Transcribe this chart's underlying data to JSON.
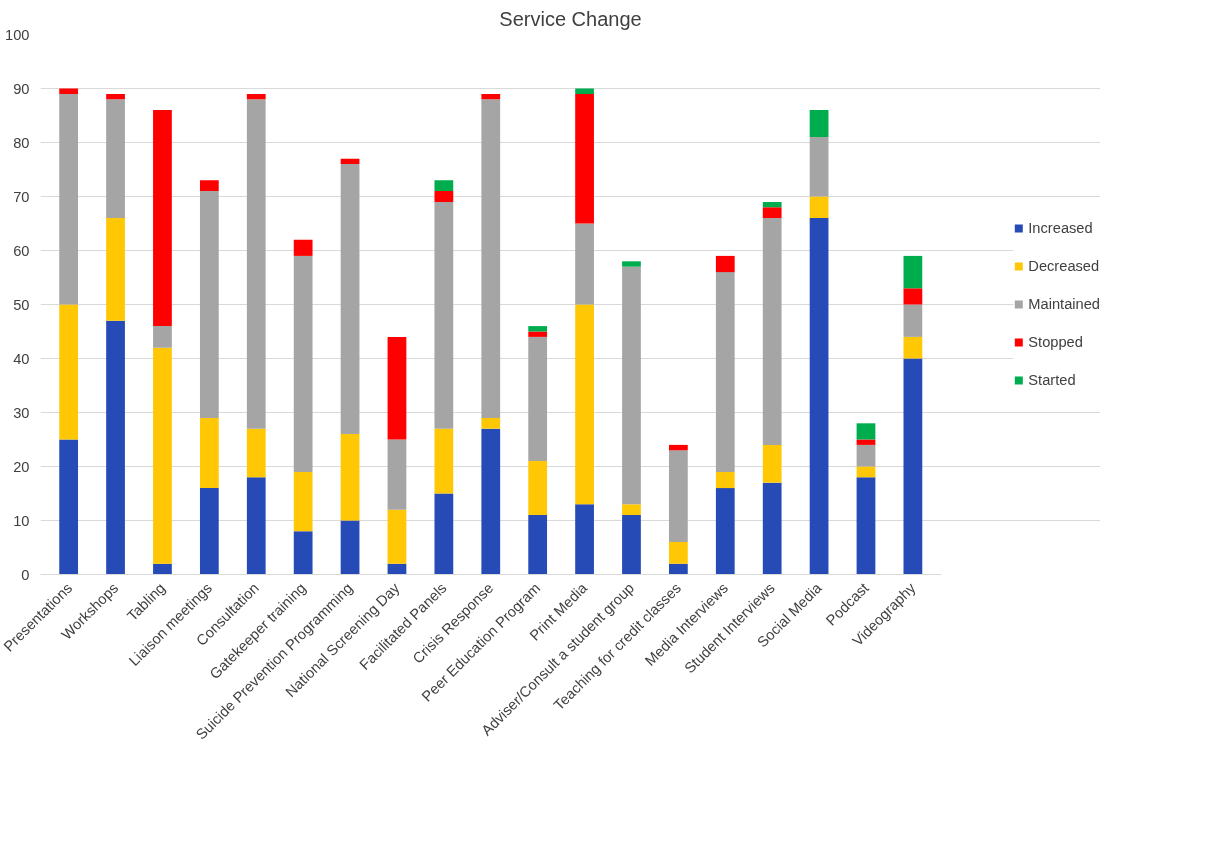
{
  "chart_data": {
    "type": "bar",
    "title": "Service Change",
    "stacked": true,
    "categories": [
      "Presentations",
      "Workshops",
      "Tabling",
      "Liaison meetings",
      "Consultation",
      "Gatekeeper training",
      "Suicide Prevention Programming",
      "National Screening Day",
      "Facilitated Panels",
      "Crisis Response",
      "Peer Education Program",
      "Print Media",
      "Adviser/Consult a student group",
      "Teaching for credit classes",
      "Media Interviews",
      "Student Interviews",
      "Social Media",
      "Podcast",
      "Videography"
    ],
    "series": [
      {
        "name": "Increased",
        "color": "#264bb7",
        "values": [
          25,
          47,
          2,
          16,
          18,
          8,
          10,
          2,
          15,
          27,
          11,
          13,
          11,
          2,
          16,
          17,
          66,
          18,
          40
        ]
      },
      {
        "name": "Decreased",
        "color": "#ffc704",
        "values": [
          25,
          19,
          40,
          13,
          9,
          11,
          16,
          10,
          12,
          2,
          10,
          37,
          2,
          4,
          3,
          7,
          4,
          2,
          4
        ]
      },
      {
        "name": "Maintained",
        "color": "#a5a5a5",
        "values": [
          39,
          22,
          4,
          42,
          61,
          40,
          50,
          13,
          42,
          59,
          23,
          15,
          44,
          17,
          37,
          42,
          11,
          4,
          6
        ]
      },
      {
        "name": "Stopped",
        "color": "#ff0000",
        "values": [
          1,
          1,
          40,
          2,
          1,
          3,
          1,
          19,
          2,
          1,
          1,
          24,
          0,
          1,
          3,
          2,
          0,
          1,
          3
        ]
      },
      {
        "name": "Started",
        "color": "#00ad4e",
        "values": [
          0,
          0,
          0,
          0,
          0,
          0,
          0,
          0,
          2,
          0,
          1,
          1,
          1,
          0,
          0,
          1,
          5,
          3,
          6
        ]
      }
    ],
    "ylim": [
      0,
      100
    ],
    "yticks": [
      0,
      10,
      20,
      30,
      40,
      50,
      60,
      70,
      80,
      90,
      100
    ],
    "grid": "y",
    "legend": "right"
  }
}
